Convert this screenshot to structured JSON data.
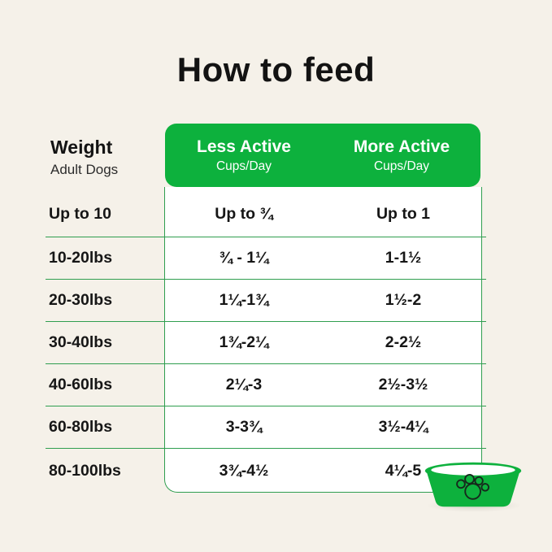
{
  "title": "How to feed",
  "colors": {
    "background": "#F5F1E9",
    "green": "#0DB13D",
    "line_green": "#2F9E4F",
    "text": "#161616",
    "header_text": "#FFFFFF"
  },
  "table": {
    "weight_header": {
      "title": "Weight",
      "subtitle": "Adult Dogs"
    },
    "columns": [
      {
        "label": "Less Active",
        "unit": "Cups/Day"
      },
      {
        "label": "More Active",
        "unit": "Cups/Day"
      }
    ],
    "rows": [
      {
        "weight": "Up to 10",
        "less_active": "Up to ¾",
        "more_active": "Up to 1"
      },
      {
        "weight": "10-20lbs",
        "less_active": "¾ - 1¼",
        "more_active": "1-1½"
      },
      {
        "weight": "20-30lbs",
        "less_active": "1¼-1¾",
        "more_active": "1½-2"
      },
      {
        "weight": "30-40lbs",
        "less_active": "1¾-2¼",
        "more_active": "2-2½"
      },
      {
        "weight": "40-60lbs",
        "less_active": "2¼-3",
        "more_active": "2½-3½"
      },
      {
        "weight": "60-80lbs",
        "less_active": "3-3¾",
        "more_active": "3½-4¼"
      },
      {
        "weight": "80-100lbs",
        "less_active": "3¾-4½",
        "more_active": "4¼-5"
      }
    ]
  },
  "icons": {
    "dog_bowl": "dog-bowl-icon",
    "paw_print": "paw-print-icon"
  },
  "chart_data": {
    "type": "table",
    "title": "How to feed",
    "columns": [
      "Weight (Adult Dogs)",
      "Less Active Cups/Day",
      "More Active Cups/Day"
    ],
    "rows": [
      [
        "Up to 10",
        "Up to ¾",
        "Up to 1"
      ],
      [
        "10-20lbs",
        "¾ - 1¼",
        "1-1½"
      ],
      [
        "20-30lbs",
        "1¼-1¾",
        "1½-2"
      ],
      [
        "30-40lbs",
        "1¾-2¼",
        "2-2½"
      ],
      [
        "40-60lbs",
        "2¼-3",
        "2½-3½"
      ],
      [
        "60-80lbs",
        "3-3¾",
        "3½-4¼"
      ],
      [
        "80-100lbs",
        "3¾-4½",
        "4¼-5"
      ]
    ]
  }
}
